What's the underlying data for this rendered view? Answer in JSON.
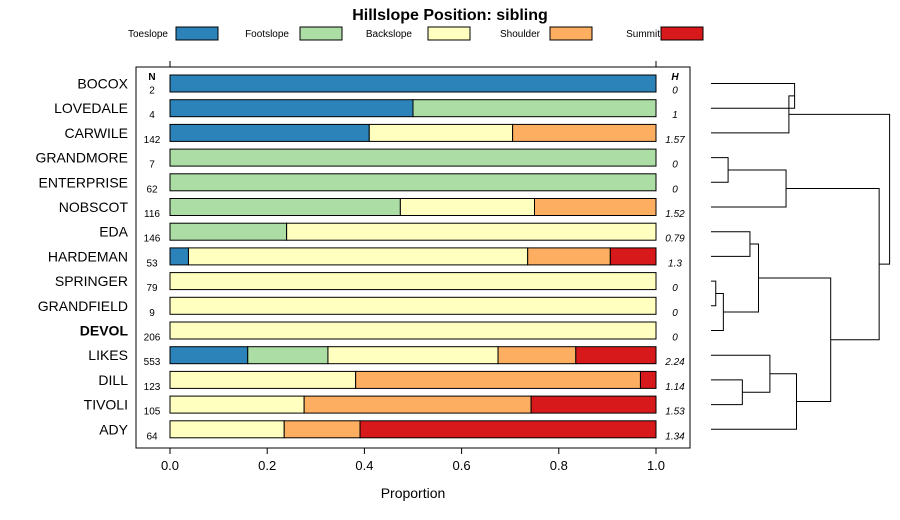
{
  "chart_data": {
    "type": "bar",
    "stacked": true,
    "orientation": "horizontal",
    "title": "Hillslope Position: sibling",
    "xlabel": "Proportion",
    "ylabel": "",
    "xlim": [
      0,
      1
    ],
    "x_ticks": [
      "0.0",
      "0.2",
      "0.4",
      "0.6",
      "0.8",
      "1.0"
    ],
    "n_header": "N",
    "h_header": "H",
    "legend_position": "top",
    "series": [
      {
        "name": "Toeslope",
        "color": "#2b83ba"
      },
      {
        "name": "Footslope",
        "color": "#abdda4"
      },
      {
        "name": "Backslope",
        "color": "#ffffbf"
      },
      {
        "name": "Shoulder",
        "color": "#fdae61"
      },
      {
        "name": "Summit",
        "color": "#d7191c"
      }
    ],
    "rows": [
      {
        "label": "BOCOX",
        "n": "2",
        "h": "0",
        "values": [
          1,
          0,
          0,
          0,
          0
        ]
      },
      {
        "label": "LOVEDALE",
        "n": "4",
        "h": "1",
        "values": [
          0.5,
          0.5,
          0,
          0,
          0
        ]
      },
      {
        "label": "CARWILE",
        "n": "142",
        "h": "1.57",
        "values": [
          0.41,
          0,
          0.295,
          0.295,
          0
        ]
      },
      {
        "label": "GRANDMORE",
        "n": "7",
        "h": "0",
        "values": [
          0,
          1,
          0,
          0,
          0
        ]
      },
      {
        "label": "ENTERPRISE",
        "n": "62",
        "h": "0",
        "values": [
          0,
          1,
          0,
          0,
          0
        ]
      },
      {
        "label": "NOBSCOT",
        "n": "116",
        "h": "1.52",
        "values": [
          0,
          0.474,
          0.276,
          0.25,
          0
        ]
      },
      {
        "label": "EDA",
        "n": "146",
        "h": "0.79",
        "values": [
          0,
          0.24,
          0.76,
          0,
          0
        ]
      },
      {
        "label": "HARDEMAN",
        "n": "53",
        "h": "1.3",
        "values": [
          0.038,
          0,
          0.698,
          0.17,
          0.094
        ]
      },
      {
        "label": "SPRINGER",
        "n": "79",
        "h": "0",
        "values": [
          0,
          0,
          1,
          0,
          0
        ]
      },
      {
        "label": "GRANDFIELD",
        "n": "9",
        "h": "0",
        "values": [
          0,
          0,
          1,
          0,
          0
        ]
      },
      {
        "label": "DEVOL",
        "n": "206",
        "h": "0",
        "values": [
          0,
          0,
          1,
          0,
          0
        ],
        "bold": true
      },
      {
        "label": "LIKES",
        "n": "553",
        "h": "2.24",
        "values": [
          0.16,
          0.165,
          0.35,
          0.16,
          0.165
        ]
      },
      {
        "label": "DILL",
        "n": "123",
        "h": "1.14",
        "values": [
          0,
          0,
          0.382,
          0.586,
          0.032
        ]
      },
      {
        "label": "TIVOLI",
        "n": "105",
        "h": "1.53",
        "values": [
          0,
          0,
          0.276,
          0.467,
          0.257
        ]
      },
      {
        "label": "ADY",
        "n": "64",
        "h": "1.34",
        "values": [
          0,
          0,
          0.235,
          0.156,
          0.609
        ]
      }
    ],
    "dendrogram": {
      "labels": [
        "BOCOX",
        "LOVEDALE",
        "CARWILE",
        "GRANDMORE",
        "ENTERPRISE",
        "NOBSCOT",
        "EDA",
        "HARDEMAN",
        "SPRINGER",
        "GRANDFIELD",
        "DEVOL",
        "LIKES",
        "DILL",
        "TIVOLI",
        "ADY"
      ],
      "merges": [
        {
          "a": "BOCOX",
          "b": "LOVEDALE",
          "height": 0.88
        },
        {
          "a": "m1",
          "b": "CARWILE",
          "height": 0.82
        },
        {
          "a": "GRANDMORE",
          "b": "ENTERPRISE",
          "height": 0.18
        },
        {
          "a": "m3",
          "b": "NOBSCOT",
          "height": 0.79
        },
        {
          "a": "SPRINGER",
          "b": "GRANDFIELD",
          "height": 0.05
        },
        {
          "a": "m5",
          "b": "DEVOL",
          "height": 0.13
        },
        {
          "a": "EDA",
          "b": "HARDEMAN",
          "height": 0.41
        },
        {
          "a": "m7",
          "b": "m6",
          "height": 0.5
        },
        {
          "a": "TIVOLI",
          "b": "DILL",
          "height": 0.33
        },
        {
          "a": "m9",
          "b": "LIKES",
          "height": 0.62
        },
        {
          "a": "m10",
          "b": "ADY",
          "height": 0.9
        },
        {
          "a": "m8",
          "b": "m11",
          "height": 1.26
        },
        {
          "a": "m4",
          "b": "m12",
          "height": 1.77
        },
        {
          "a": "m2",
          "b": "m13",
          "height": 1.88
        }
      ]
    }
  }
}
